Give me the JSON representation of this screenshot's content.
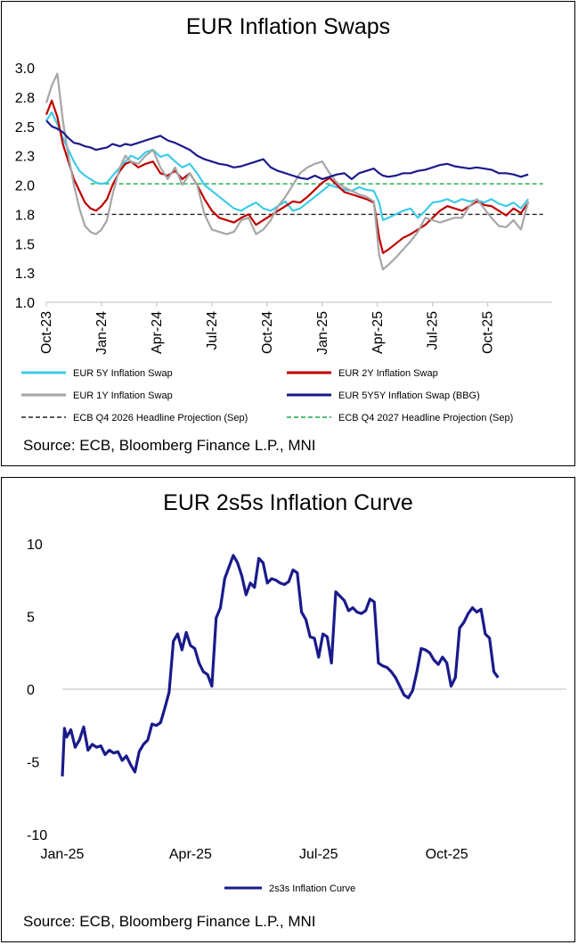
{
  "chart_data": [
    {
      "type": "line",
      "title": "EUR Inflation Swaps",
      "source": "Source: ECB, Bloomberg Finance L.P., MNI",
      "ylim": [
        1.0,
        3.0
      ],
      "yticks": [
        "3.0",
        "2.8",
        "2.5",
        "2.3",
        "2.0",
        "1.8",
        "1.5",
        "1.3",
        "1.0"
      ],
      "ytick_values": [
        3.0,
        2.75,
        2.5,
        2.25,
        2.0,
        1.75,
        1.5,
        1.25,
        1.0
      ],
      "xticks": [
        "Oct-23",
        "Jan-24",
        "Apr-24",
        "Jul-24",
        "Oct-24",
        "Jan-25",
        "Apr-25",
        "Jul-25",
        "Oct-25"
      ],
      "x_months": [
        0,
        3,
        6,
        9,
        12,
        15,
        18,
        21,
        24
      ],
      "x_range_months": [
        0,
        27.5
      ],
      "series": [
        {
          "name": "EUR 5Y Inflation Swap",
          "color": "#3ecbe8",
          "width": 2.2,
          "x": [
            0,
            0.3,
            0.6,
            0.9,
            1.2,
            1.5,
            1.8,
            2.1,
            2.4,
            2.7,
            3.0,
            3.3,
            3.6,
            4.0,
            4.3,
            4.6,
            5.0,
            5.4,
            5.8,
            6.2,
            6.6,
            7.0,
            7.4,
            7.8,
            8.2,
            8.6,
            9.0,
            9.4,
            9.8,
            10.2,
            10.6,
            11.0,
            11.4,
            11.8,
            12.2,
            12.6,
            13.0,
            13.4,
            13.8,
            14.2,
            14.6,
            15.0,
            15.4,
            15.8,
            16.2,
            16.6,
            17.0,
            17.4,
            17.8,
            18.1,
            18.3,
            18.6,
            19.0,
            19.4,
            19.8,
            20.2,
            20.6,
            21.0,
            21.4,
            21.8,
            22.2,
            22.6,
            23.0,
            23.4,
            23.8,
            24.2,
            24.6,
            25.0,
            25.4,
            25.8,
            26.2
          ],
          "values": [
            2.55,
            2.62,
            2.52,
            2.4,
            2.3,
            2.2,
            2.12,
            2.08,
            2.05,
            2.02,
            2.01,
            2.02,
            2.08,
            2.15,
            2.2,
            2.25,
            2.22,
            2.28,
            2.3,
            2.24,
            2.26,
            2.2,
            2.15,
            2.18,
            2.1,
            2.0,
            1.95,
            1.9,
            1.85,
            1.8,
            1.78,
            1.82,
            1.85,
            1.8,
            1.78,
            1.82,
            1.86,
            1.78,
            1.8,
            1.85,
            1.9,
            1.95,
            2.0,
            1.98,
            1.96,
            1.95,
            1.98,
            1.96,
            1.95,
            1.85,
            1.7,
            1.72,
            1.75,
            1.78,
            1.8,
            1.72,
            1.78,
            1.85,
            1.86,
            1.88,
            1.85,
            1.88,
            1.86,
            1.87,
            1.85,
            1.88,
            1.84,
            1.82,
            1.85,
            1.8,
            1.88
          ]
        },
        {
          "name": "EUR 2Y Inflation Swap",
          "color": "#c00000",
          "width": 2.2,
          "x": [
            0,
            0.3,
            0.6,
            0.9,
            1.2,
            1.5,
            1.8,
            2.1,
            2.4,
            2.7,
            3.0,
            3.3,
            3.6,
            4.0,
            4.3,
            4.6,
            5.0,
            5.4,
            5.8,
            6.2,
            6.6,
            7.0,
            7.4,
            7.8,
            8.2,
            8.6,
            9.0,
            9.4,
            9.8,
            10.2,
            10.6,
            11.0,
            11.4,
            11.8,
            12.2,
            12.6,
            13.0,
            13.4,
            13.8,
            14.2,
            14.6,
            15.0,
            15.4,
            15.8,
            16.2,
            16.6,
            17.0,
            17.4,
            17.8,
            18.1,
            18.3,
            18.6,
            19.0,
            19.4,
            19.8,
            20.2,
            20.6,
            21.0,
            21.4,
            21.8,
            22.2,
            22.6,
            23.0,
            23.4,
            23.8,
            24.2,
            24.6,
            25.0,
            25.4,
            25.8,
            26.2
          ],
          "values": [
            2.6,
            2.72,
            2.58,
            2.35,
            2.2,
            2.05,
            1.95,
            1.85,
            1.8,
            1.78,
            1.82,
            1.88,
            2.0,
            2.12,
            2.18,
            2.2,
            2.15,
            2.18,
            2.2,
            2.1,
            2.08,
            2.12,
            2.05,
            2.1,
            2.0,
            1.88,
            1.78,
            1.72,
            1.7,
            1.68,
            1.72,
            1.75,
            1.66,
            1.7,
            1.74,
            1.78,
            1.82,
            1.86,
            1.85,
            1.9,
            1.96,
            2.02,
            2.06,
            2.0,
            1.94,
            1.92,
            1.9,
            1.88,
            1.85,
            1.55,
            1.42,
            1.45,
            1.5,
            1.55,
            1.58,
            1.62,
            1.66,
            1.72,
            1.78,
            1.82,
            1.8,
            1.78,
            1.82,
            1.86,
            1.83,
            1.82,
            1.78,
            1.74,
            1.8,
            1.76,
            1.85
          ]
        },
        {
          "name": "EUR 1Y Inflation Swap",
          "color": "#a6a6a6",
          "width": 2.2,
          "x": [
            0,
            0.3,
            0.6,
            0.9,
            1.2,
            1.5,
            1.8,
            2.1,
            2.4,
            2.7,
            3.0,
            3.3,
            3.6,
            4.0,
            4.3,
            4.6,
            5.0,
            5.4,
            5.8,
            6.2,
            6.6,
            7.0,
            7.4,
            7.8,
            8.2,
            8.6,
            9.0,
            9.4,
            9.8,
            10.2,
            10.6,
            11.0,
            11.4,
            11.8,
            12.2,
            12.6,
            13.0,
            13.4,
            13.8,
            14.2,
            14.6,
            15.0,
            15.4,
            15.8,
            16.2,
            16.6,
            17.0,
            17.4,
            17.8,
            18.1,
            18.3,
            18.6,
            19.0,
            19.4,
            19.8,
            20.2,
            20.6,
            21.0,
            21.4,
            21.8,
            22.2,
            22.6,
            23.0,
            23.4,
            23.8,
            24.2,
            24.6,
            25.0,
            25.4,
            25.8,
            26.2
          ],
          "values": [
            2.7,
            2.85,
            2.95,
            2.55,
            2.25,
            2.0,
            1.8,
            1.65,
            1.6,
            1.58,
            1.62,
            1.7,
            1.92,
            2.15,
            2.25,
            2.2,
            2.18,
            2.25,
            2.3,
            2.15,
            2.05,
            2.15,
            2.0,
            2.1,
            2.0,
            1.75,
            1.62,
            1.6,
            1.58,
            1.6,
            1.7,
            1.72,
            1.58,
            1.62,
            1.7,
            1.82,
            1.9,
            2.0,
            2.1,
            2.15,
            2.18,
            2.2,
            2.1,
            2.02,
            1.98,
            1.95,
            1.92,
            1.9,
            1.86,
            1.4,
            1.28,
            1.32,
            1.38,
            1.45,
            1.52,
            1.6,
            1.72,
            1.7,
            1.68,
            1.7,
            1.72,
            1.72,
            1.82,
            1.88,
            1.8,
            1.72,
            1.65,
            1.64,
            1.7,
            1.62,
            1.86
          ]
        },
        {
          "name": "EUR 5Y5Y Inflation Swap (BBG)",
          "color": "#1a1a8c",
          "width": 2.2,
          "x": [
            0,
            0.3,
            0.6,
            0.9,
            1.2,
            1.5,
            1.8,
            2.1,
            2.4,
            2.7,
            3.0,
            3.3,
            3.6,
            4.0,
            4.3,
            4.6,
            5.0,
            5.4,
            5.8,
            6.2,
            6.6,
            7.0,
            7.4,
            7.8,
            8.2,
            8.6,
            9.0,
            9.4,
            9.8,
            10.2,
            10.6,
            11.0,
            11.4,
            11.8,
            12.2,
            12.6,
            13.0,
            13.4,
            13.8,
            14.2,
            14.6,
            15.0,
            15.4,
            15.8,
            16.2,
            16.6,
            17.0,
            17.4,
            17.8,
            18.1,
            18.3,
            18.6,
            19.0,
            19.4,
            19.8,
            20.2,
            20.6,
            21.0,
            21.4,
            21.8,
            22.2,
            22.6,
            23.0,
            23.4,
            23.8,
            24.2,
            24.6,
            25.0,
            25.4,
            25.8,
            26.2
          ],
          "values": [
            2.55,
            2.5,
            2.48,
            2.45,
            2.4,
            2.36,
            2.35,
            2.33,
            2.32,
            2.3,
            2.31,
            2.32,
            2.35,
            2.33,
            2.35,
            2.34,
            2.36,
            2.38,
            2.4,
            2.42,
            2.38,
            2.36,
            2.33,
            2.3,
            2.25,
            2.22,
            2.2,
            2.18,
            2.17,
            2.15,
            2.16,
            2.18,
            2.2,
            2.22,
            2.15,
            2.12,
            2.1,
            2.08,
            2.06,
            2.05,
            2.08,
            2.05,
            2.07,
            2.09,
            2.1,
            2.05,
            2.1,
            2.12,
            2.14,
            2.1,
            2.08,
            2.07,
            2.08,
            2.1,
            2.1,
            2.12,
            2.13,
            2.15,
            2.17,
            2.18,
            2.16,
            2.15,
            2.14,
            2.15,
            2.14,
            2.13,
            2.1,
            2.1,
            2.09,
            2.07,
            2.09
          ]
        },
        {
          "name": "ECB Q4 2026 Headline Projection (Sep)",
          "color": "#222222",
          "width": 1.4,
          "dash": "5,3",
          "x": [
            2.4,
            27.0
          ],
          "values": [
            1.75,
            1.75
          ]
        },
        {
          "name": "ECB Q4 2027 Headline Projection (Sep)",
          "color": "#1aa64a",
          "width": 1.4,
          "dash": "5,3",
          "x": [
            2.4,
            27.0
          ],
          "values": [
            2.01,
            2.01
          ]
        }
      ]
    },
    {
      "type": "line",
      "title": "EUR 2s5s Inflation Curve",
      "source": "Source: ECB, Bloomberg Finance L.P., MNI",
      "ylim": [
        -10,
        10
      ],
      "yticks": [
        "10",
        "5",
        "0",
        "-5",
        "-10"
      ],
      "ytick_values": [
        10,
        5,
        0,
        -5,
        -10
      ],
      "xticks": [
        "Jan-25",
        "Apr-25",
        "Jul-25",
        "Oct-25"
      ],
      "x_months": [
        0,
        3,
        6,
        9
      ],
      "x_range_months": [
        0,
        11.8
      ],
      "series": [
        {
          "name": "2s3s Inflation Curve",
          "color": "#1a1a8c",
          "width": 3.2,
          "x": [
            0,
            0.05,
            0.1,
            0.2,
            0.3,
            0.4,
            0.5,
            0.6,
            0.7,
            0.8,
            0.9,
            1.0,
            1.1,
            1.2,
            1.3,
            1.4,
            1.5,
            1.6,
            1.7,
            1.8,
            1.9,
            2.0,
            2.1,
            2.2,
            2.3,
            2.4,
            2.5,
            2.6,
            2.7,
            2.8,
            2.9,
            3.0,
            3.1,
            3.2,
            3.3,
            3.4,
            3.5,
            3.6,
            3.7,
            3.8,
            3.9,
            4.0,
            4.1,
            4.2,
            4.3,
            4.4,
            4.5,
            4.6,
            4.7,
            4.8,
            4.9,
            5.0,
            5.1,
            5.2,
            5.3,
            5.4,
            5.5,
            5.6,
            5.7,
            5.8,
            5.9,
            6.0,
            6.1,
            6.2,
            6.3,
            6.4,
            6.5,
            6.6,
            6.7,
            6.8,
            6.9,
            7.0,
            7.1,
            7.2,
            7.3,
            7.4,
            7.5,
            7.6,
            7.7,
            7.8,
            7.9,
            8.0,
            8.1,
            8.2,
            8.3,
            8.4,
            8.5,
            8.6,
            8.7,
            8.8,
            8.9,
            9.0,
            9.1,
            9.2,
            9.3,
            9.4,
            9.5,
            9.6,
            9.7,
            9.8,
            9.9,
            10.0,
            10.1,
            10.2
          ],
          "values": [
            -6.0,
            -2.7,
            -3.3,
            -2.8,
            -4.0,
            -3.5,
            -2.6,
            -4.2,
            -3.8,
            -4.0,
            -3.9,
            -4.5,
            -4.2,
            -4.4,
            -4.3,
            -4.9,
            -4.6,
            -5.2,
            -5.7,
            -4.3,
            -3.8,
            -3.5,
            -2.4,
            -2.5,
            -2.3,
            -1.3,
            -0.2,
            3.3,
            3.8,
            2.7,
            3.9,
            3.0,
            2.8,
            1.8,
            1.2,
            1.0,
            0.2,
            4.9,
            5.6,
            7.6,
            8.4,
            9.2,
            8.7,
            7.8,
            6.5,
            7.3,
            7.0,
            9.0,
            8.7,
            7.3,
            7.6,
            7.5,
            7.3,
            7.2,
            7.4,
            8.2,
            8.0,
            5.3,
            4.8,
            3.6,
            3.5,
            2.2,
            3.8,
            3.6,
            1.8,
            6.7,
            6.4,
            6.1,
            5.4,
            5.6,
            5.3,
            5.2,
            5.4,
            6.2,
            6.0,
            1.8,
            1.6,
            1.5,
            1.2,
            0.8,
            0.2,
            -0.4,
            -0.6,
            -0.1,
            1.2,
            2.8,
            2.7,
            2.5,
            2.0,
            1.7,
            2.2,
            1.8,
            0.2,
            0.8,
            4.2,
            4.6,
            5.2,
            5.6,
            5.3,
            5.5,
            3.8,
            3.5,
            1.2,
            0.8
          ]
        }
      ]
    }
  ]
}
